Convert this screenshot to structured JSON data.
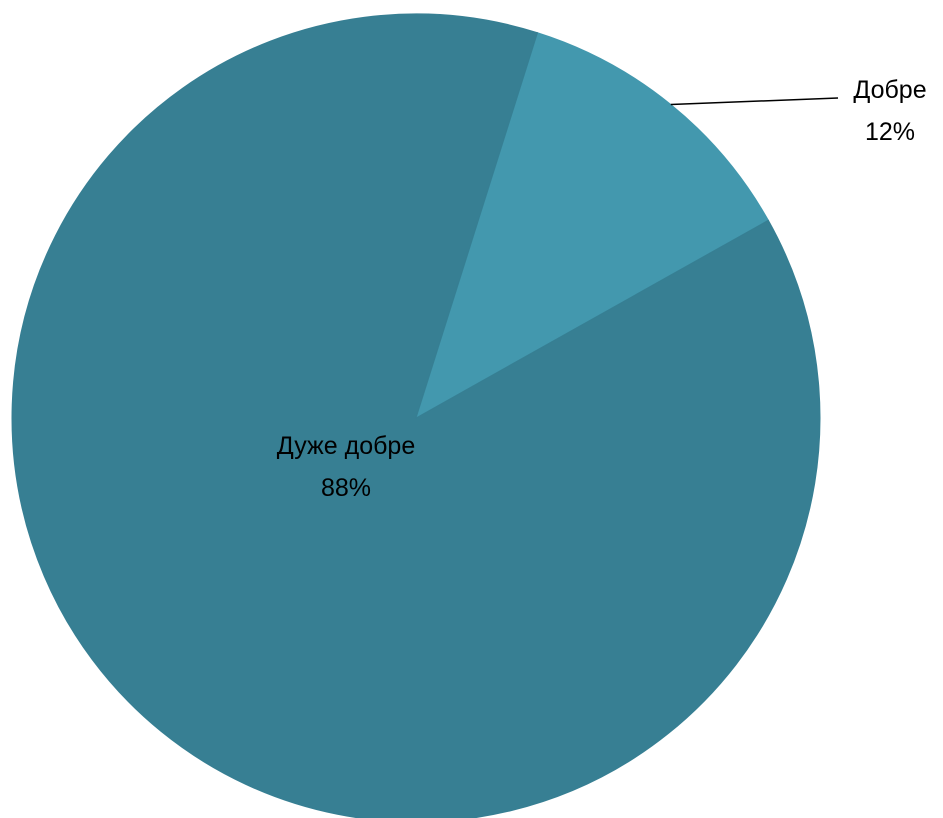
{
  "chart_data": {
    "type": "pie",
    "title": "",
    "slices": [
      {
        "label": "Добре",
        "value": 12,
        "percent_label": "12%",
        "color": "#4398ae"
      },
      {
        "label": "Дуже добре",
        "value": 88,
        "percent_label": "88%",
        "color": "#377f93"
      }
    ],
    "legend": "none"
  }
}
